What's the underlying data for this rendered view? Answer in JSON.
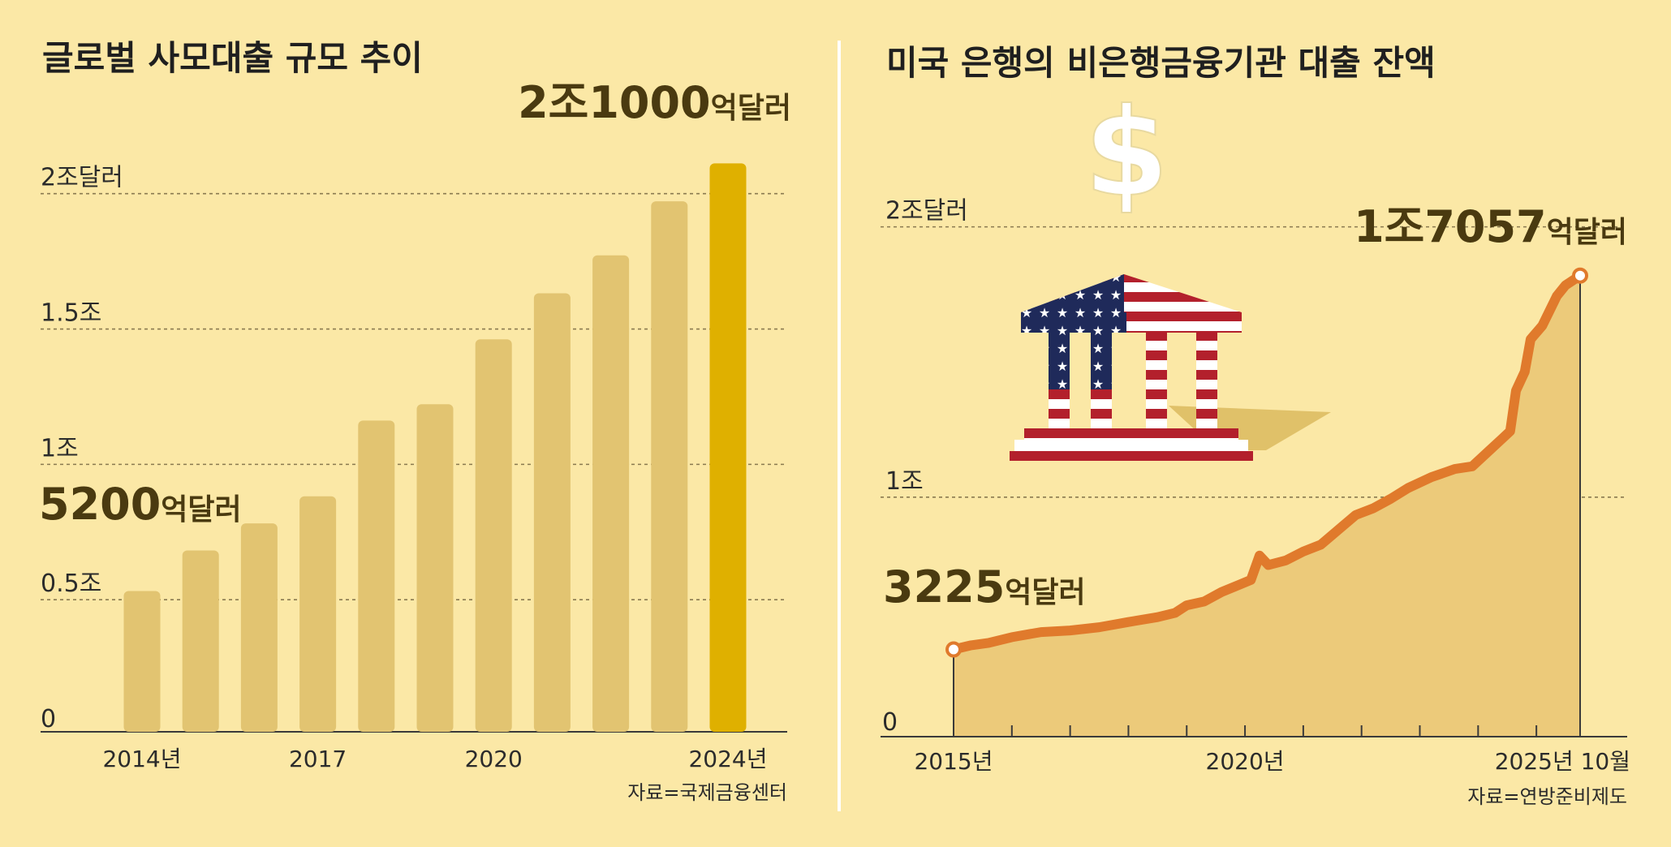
{
  "chart_data": [
    {
      "type": "bar",
      "title": "글로벌 사모대출 규모 추이",
      "unit": "억달러",
      "categories": [
        "2014",
        "2015",
        "2016",
        "2017",
        "2018",
        "2019",
        "2020",
        "2021",
        "2022",
        "2023",
        "2024"
      ],
      "values": [
        5200,
        6700,
        7700,
        8700,
        11500,
        12100,
        14500,
        16200,
        17600,
        19600,
        21000
      ],
      "highlight_index": 10,
      "ylim": [
        0,
        22000
      ],
      "yticks": [
        {
          "value": 0,
          "label": "0"
        },
        {
          "value": 5000,
          "label": "0.5조"
        },
        {
          "value": 10000,
          "label": "1조"
        },
        {
          "value": 15000,
          "label": "1.5조"
        },
        {
          "value": 20000,
          "label": "2조달러"
        }
      ],
      "xticks": [
        {
          "index": 0,
          "label": "2014년"
        },
        {
          "index": 3,
          "label": "2017"
        },
        {
          "index": 6,
          "label": "2020"
        },
        {
          "index": 10,
          "label": "2024년"
        }
      ],
      "annotations": [
        {
          "index": 0,
          "num": "5200",
          "unit": "억달러"
        },
        {
          "index": 10,
          "num": "2조1000",
          "unit": "억달러"
        }
      ],
      "source": "자료=국제금융센터",
      "colors": {
        "bar": "#e2c471",
        "highlight": "#dfb000"
      }
    },
    {
      "type": "area",
      "title": "미국 은행의 비은행금융기관 대출 잔액",
      "unit": "억달러",
      "x": [
        2015.0,
        2015.3,
        2015.6,
        2016.0,
        2016.5,
        2017.0,
        2017.5,
        2018.0,
        2018.5,
        2018.8,
        2019.0,
        2019.3,
        2019.6,
        2019.9,
        2020.1,
        2020.25,
        2020.4,
        2020.7,
        2021.0,
        2021.3,
        2021.6,
        2021.9,
        2022.2,
        2022.5,
        2022.8,
        2023.2,
        2023.6,
        2023.9,
        2024.2,
        2024.4,
        2024.55,
        2024.65,
        2024.8,
        2024.9,
        2025.1,
        2025.35,
        2025.5,
        2025.75
      ],
      "y": [
        3225,
        3380,
        3470,
        3680,
        3870,
        3930,
        4050,
        4240,
        4420,
        4580,
        4860,
        5000,
        5350,
        5620,
        5800,
        6700,
        6350,
        6520,
        6850,
        7100,
        7650,
        8200,
        8450,
        8800,
        9200,
        9600,
        9900,
        10000,
        10600,
        11000,
        11300,
        12800,
        13500,
        14700,
        15200,
        16300,
        16700,
        17057
      ],
      "ylim": [
        0,
        22000
      ],
      "xlim": [
        2015,
        2025.75
      ],
      "yticks": [
        {
          "value": 0,
          "label": "0"
        },
        {
          "value": 10000,
          "label": "1조"
        },
        {
          "value": 20000,
          "label": "2조달러"
        }
      ],
      "xticks": [
        {
          "value": 2015,
          "label": "2015년"
        },
        {
          "value": 2020,
          "label": "2020년"
        },
        {
          "value": 2025.75,
          "label": "2025년 10월"
        }
      ],
      "annotations": [
        {
          "x": 2015.0,
          "num": "3225",
          "unit": "억달러"
        },
        {
          "x": 2025.75,
          "num": "1조7057",
          "unit": "억달러"
        }
      ],
      "source": "자료=연방준비제도",
      "colors": {
        "line": "#e07a2c",
        "fill": "#ecca7a"
      }
    }
  ],
  "icons": [
    "dollar-sign-icon",
    "bank-building-icon"
  ]
}
